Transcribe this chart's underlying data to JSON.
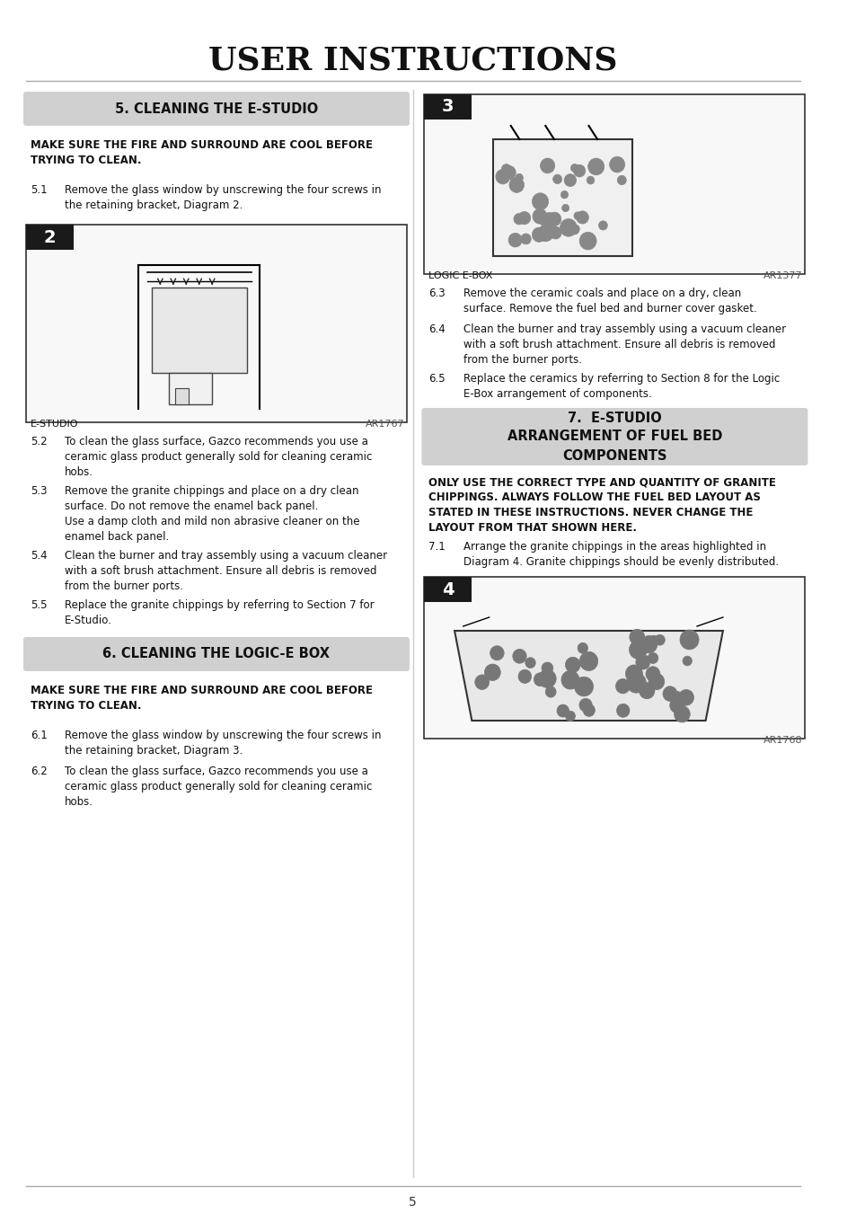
{
  "title": "USER INSTRUCTIONS",
  "bg_color": "#ffffff",
  "section5_header": "5. CLEANING THE E-STUDIO",
  "section6_header": "6. CLEANING THE LOGIC-E BOX",
  "section7_header": "7.  E-STUDIO\nARRANGEMENT OF FUEL BED\nCOMPONENTS",
  "warning_text": "MAKE SURE THE FIRE AND SURROUND ARE COOL BEFORE\nTRYING TO CLEAN.",
  "section5_items": [
    [
      "5.1",
      "Remove the glass window by unscrewing the four screws in\nthe retaining bracket, Diagram 2."
    ],
    [
      "5.2",
      "To clean the glass surface, Gazco recommends you use a\nceramic glass product generally sold for cleaning ceramic\nhobs."
    ],
    [
      "5.3",
      "Remove the granite chippings and place on a dry clean\nsurface. Do not remove the enamel back panel.\nUse a damp cloth and mild non abrasive cleaner on the\nenamel back panel."
    ],
    [
      "5.4",
      "Clean the burner and tray assembly using a vacuum cleaner\nwith a soft brush attachment. Ensure all debris is removed\nfrom the burner ports."
    ],
    [
      "5.5",
      "Replace the granite chippings by referring to Section 7 for\nE-Studio."
    ]
  ],
  "section6_items": [
    [
      "6.1",
      "Remove the glass window by unscrewing the four screws in\nthe retaining bracket, Diagram 3."
    ],
    [
      "6.2",
      "To clean the glass surface, Gazco recommends you use a\nceramic glass product generally sold for cleaning ceramic\nhobs."
    ]
  ],
  "section6_items_right": [
    [
      "6.3",
      "Remove the ceramic coals and place on a dry, clean\nsurface. Remove the fuel bed and burner cover gasket."
    ],
    [
      "6.4",
      "Clean the burner and tray assembly using a vacuum cleaner\nwith a soft brush attachment. Ensure all debris is removed\nfrom the burner ports."
    ],
    [
      "6.5",
      "Replace the ceramics by referring to Section 8 for the Logic\nE-Box arrangement of components."
    ]
  ],
  "section7_warning": "ONLY USE THE CORRECT TYPE AND QUANTITY OF GRANITE\nCHIPPINGS. ALWAYS FOLLOW THE FUEL BED LAYOUT AS\nSTATED IN THESE INSTRUCTIONS. NEVER CHANGE THE\nLAYOUT FROM THAT SHOWN HERE.",
  "section7_items": [
    [
      "7.1",
      "Arrange the granite chippings in the areas highlighted in\nDiagram 4. Granite chippings should be evenly distributed."
    ]
  ],
  "diagram2_label": "E-STUDIO",
  "diagram2_ref": "AR1767",
  "diagram3_label": "LOGIC E-BOX",
  "diagram3_ref": "AR1377",
  "diagram4_ref": "AR1768",
  "page_number": "5",
  "divider_color": "#cccccc",
  "header_bg": "#d0d0d0",
  "header_bg_right": "#c8c8c8",
  "diagram_border": "#000000",
  "diagram_num_bg": "#1a1a1a",
  "diagram_num_color": "#ffffff"
}
